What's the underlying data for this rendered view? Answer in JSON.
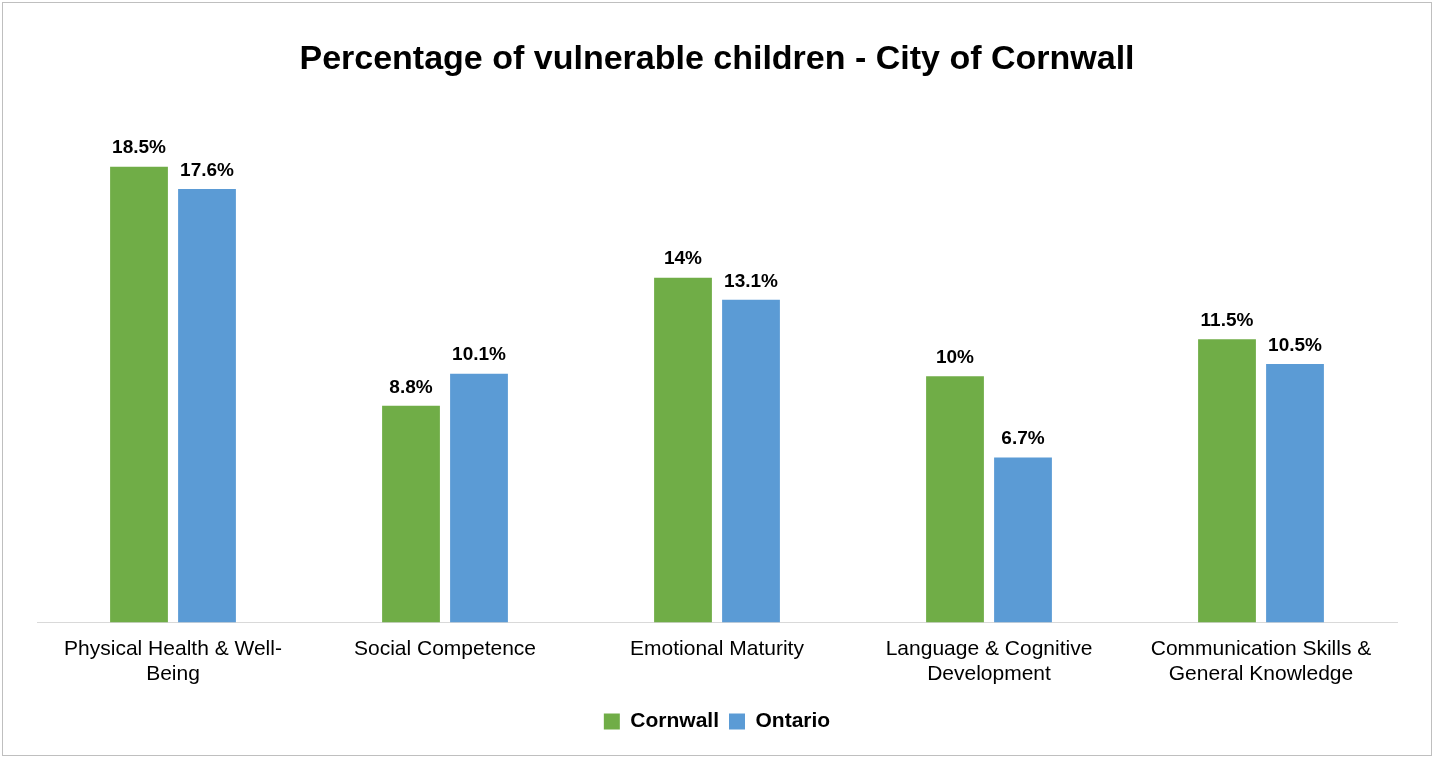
{
  "chart_data": {
    "type": "bar",
    "title": "Percentage of vulnerable children - City of Cornwall",
    "categories": [
      "Physical Health & Well-Being",
      "Social Competence",
      "Emotional Maturity",
      "Language & Cognitive Development",
      "Communication Skills & General Knowledge"
    ],
    "series": [
      {
        "name": "Cornwall",
        "color": "#70ad47",
        "values": [
          18.5,
          8.8,
          14,
          10,
          11.5
        ],
        "value_labels": [
          "18.5%",
          "8.8%",
          "14%",
          "10%",
          "11.5%"
        ]
      },
      {
        "name": "Ontario",
        "color": "#5b9bd5",
        "values": [
          17.6,
          10.1,
          13.1,
          6.7,
          10.5
        ],
        "value_labels": [
          "17.6%",
          "10.1%",
          "13.1%",
          "6.7%",
          "10.5%"
        ]
      }
    ],
    "legend": "bottom",
    "grid": false
  }
}
